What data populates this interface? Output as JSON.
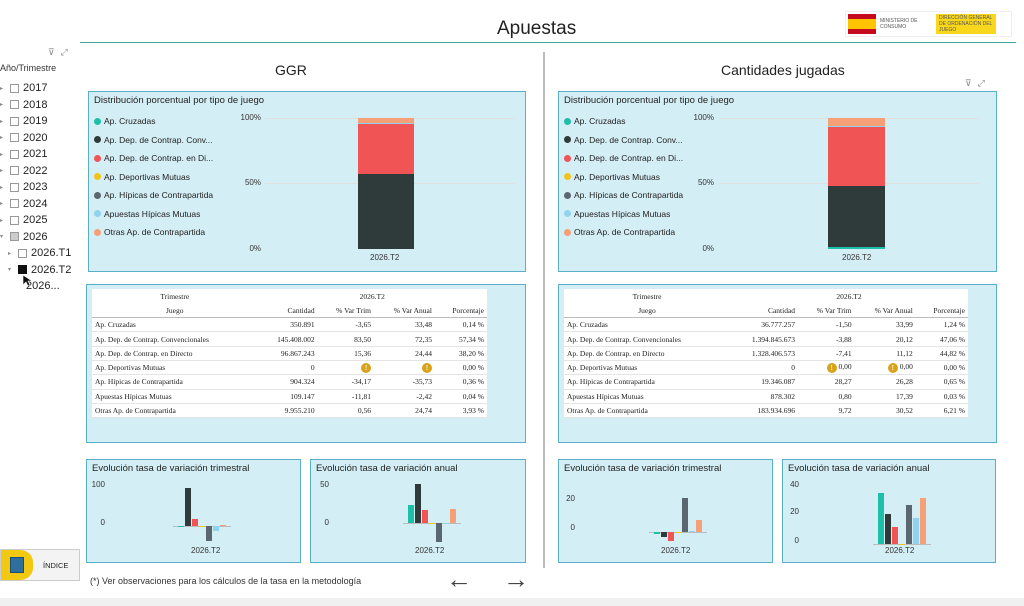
{
  "page": {
    "title": "Apuestas",
    "logo_text": "MINISTERIO DE CONSUMO",
    "logo_sub": "DIRECCIÓN GENERAL DE ORDENACIÓN DEL JUEGO"
  },
  "slicer": {
    "title": "Año/Trimestre",
    "years": [
      "2017",
      "2018",
      "2019",
      "2020",
      "2021",
      "2022",
      "2023",
      "2024",
      "2025",
      "2026"
    ],
    "quarters": [
      "2026.T1",
      "2026.T2"
    ],
    "sub": "2026..."
  },
  "colors": {
    "Ap. Cruzadas": "#1ebfa8",
    "Ap. Dep. de Contrap. Convencionales": "#2f3b3b",
    "Ap. Dep. de Contrap. en Directo": "#f05454",
    "Ap. Deportivas Mutuas": "#f0c419",
    "Ap. Hípicas de Contrapartida": "#5b6770",
    "Apuestas Hípicas Mutuas": "#8fd3f0",
    "Otras Ap. de Contrapartida": "#f5a076"
  },
  "ggr": {
    "section_title": "GGR",
    "dist": {
      "title": "Distribución porcentual por tipo de juego",
      "legend": [
        "Ap. Cruzadas",
        "Ap. Dep. de Contrap. Conv...",
        "Ap. Dep. de Contrap. en Di...",
        "Ap. Deportivas Mutuas",
        "Ap. Hípicas de Contrapartida",
        "Apuestas Hípicas Mutuas",
        "Otras Ap. de Contrapartida"
      ],
      "yticks": [
        "100%",
        "50%",
        "0%"
      ],
      "xlabel": "2026.T2"
    },
    "table": {
      "col_trimestre": "Trimestre",
      "col_juego": "Juego",
      "period": "2026.T2",
      "cols": [
        "Cantidad",
        "% Var Trim",
        "% Var Anual",
        "Porcentaje"
      ],
      "rows": [
        {
          "juego": "Ap. Cruzadas",
          "cantidad": "350.891",
          "trim": "-3,65",
          "anual": "33,48",
          "pct": "0,14 %"
        },
        {
          "juego": "Ap. Dep. de Contrap. Convencionales",
          "cantidad": "145.408.002",
          "trim": "83,50",
          "anual": "72,35",
          "pct": "57,34 %"
        },
        {
          "juego": "Ap. Dep. de Contrap. en Directo",
          "cantidad": "96.867.243",
          "trim": "15,36",
          "anual": "24,44",
          "pct": "38,20 %"
        },
        {
          "juego": "Ap. Deportivas Mutuas",
          "cantidad": "0",
          "trim": "",
          "anual": "",
          "pct": "0,00 %"
        },
        {
          "juego": "Ap. Hípicas de Contrapartida",
          "cantidad": "904.324",
          "trim": "-34,17",
          "anual": "-35,73",
          "pct": "0,36 %"
        },
        {
          "juego": "Apuestas Hípicas Mutuas",
          "cantidad": "109.147",
          "trim": "-11,81",
          "anual": "-2,42",
          "pct": "0,04 %"
        },
        {
          "juego": "Otras Ap. de Contrapartida",
          "cantidad": "9.955.210",
          "trim": "0,56",
          "anual": "24,74",
          "pct": "3,93 %"
        }
      ]
    },
    "trim_chart": {
      "title": "Evolución tasa de variación trimestral",
      "yticks": [
        "100",
        "0"
      ],
      "xlabel": "2026.T2"
    },
    "anual_chart": {
      "title": "Evolución tasa de variación anual",
      "yticks": [
        "50",
        "0"
      ],
      "xlabel": "2026.T2"
    }
  },
  "cant": {
    "section_title": "Cantidades jugadas",
    "dist": {
      "title": "Distribución porcentual por tipo de juego",
      "legend": [
        "Ap. Cruzadas",
        "Ap. Dep. de Contrap. Conv...",
        "Ap. Dep. de Contrap. en Di...",
        "Ap. Deportivas Mutuas",
        "Ap. Hípicas de Contrapartida",
        "Apuestas Hípicas Mutuas",
        "Otras Ap. de Contrapartida"
      ],
      "yticks": [
        "100%",
        "50%",
        "0%"
      ],
      "xlabel": "2026.T2"
    },
    "table": {
      "col_trimestre": "Trimestre",
      "col_juego": "Juego",
      "period": "2026.T2",
      "cols": [
        "Cantidad",
        "% Var Trim",
        "% Var Anual",
        "Porcentaje"
      ],
      "rows": [
        {
          "juego": "Ap. Cruzadas",
          "cantidad": "36.777.257",
          "trim": "-1,50",
          "anual": "33,99",
          "pct": "1,24 %"
        },
        {
          "juego": "Ap. Dep. de Contrap. Convencionales",
          "cantidad": "1.394.845.673",
          "trim": "-3,88",
          "anual": "20,12",
          "pct": "47,06 %"
        },
        {
          "juego": "Ap. Dep. de Contrap. en Directo",
          "cantidad": "1.328.406.573",
          "trim": "-7,41",
          "anual": "11,12",
          "pct": "44,82 %"
        },
        {
          "juego": "Ap. Deportivas Mutuas",
          "cantidad": "0",
          "trim": "0,00",
          "anual": "0,00",
          "pct": "0,00 %"
        },
        {
          "juego": "Ap. Hípicas de Contrapartida",
          "cantidad": "19.346.087",
          "trim": "28,27",
          "anual": "26,28",
          "pct": "0,65 %"
        },
        {
          "juego": "Apuestas Hípicas Mutuas",
          "cantidad": "878.302",
          "trim": "0,80",
          "anual": "17,39",
          "pct": "0,03 %"
        },
        {
          "juego": "Otras Ap. de Contrapartida",
          "cantidad": "183.934.696",
          "trim": "9,72",
          "anual": "30,52",
          "pct": "6,21 %"
        }
      ]
    },
    "trim_chart": {
      "title": "Evolución tasa de variación trimestral",
      "yticks": [
        "20",
        "0"
      ],
      "xlabel": "2026.T2"
    },
    "anual_chart": {
      "title": "Evolución tasa de variación anual",
      "yticks": [
        "40",
        "20",
        "0"
      ],
      "xlabel": "2026.T2"
    }
  },
  "chart_data": [
    {
      "type": "bar",
      "title": "Distribución porcentual por tipo de juego",
      "categories": [
        "2026.T2"
      ],
      "ylim": [
        0,
        100
      ],
      "series": [
        {
          "name": "Ap. Cruzadas",
          "values": [
            0.14
          ]
        },
        {
          "name": "Ap. Dep. de Contrap. Convencionales",
          "values": [
            57.34
          ]
        },
        {
          "name": "Ap. Dep. de Contrap. en Directo",
          "values": [
            38.2
          ]
        },
        {
          "name": "Ap. Deportivas Mutuas",
          "values": [
            0.0
          ]
        },
        {
          "name": "Ap. Hípicas de Contrapartida",
          "values": [
            0.36
          ]
        },
        {
          "name": "Apuestas Hípicas Mutuas",
          "values": [
            0.04
          ]
        },
        {
          "name": "Otras Ap. de Contrapartida",
          "values": [
            3.93
          ]
        }
      ]
    },
    {
      "type": "bar",
      "title": "Evolución tasa de variación trimestral",
      "categories": [
        "2026.T2"
      ],
      "series": [
        {
          "name": "Ap. Cruzadas",
          "values": [
            -3.65
          ]
        },
        {
          "name": "Ap. Dep. de Contrap. Convencionales",
          "values": [
            83.5
          ]
        },
        {
          "name": "Ap. Dep. de Contrap. en Directo",
          "values": [
            15.36
          ]
        },
        {
          "name": "Ap. Deportivas Mutuas",
          "values": [
            0
          ]
        },
        {
          "name": "Ap. Hípicas de Contrapartida",
          "values": [
            -34.17
          ]
        },
        {
          "name": "Apuestas Hípicas Mutuas",
          "values": [
            -11.81
          ]
        },
        {
          "name": "Otras Ap. de Contrapartida",
          "values": [
            0.56
          ]
        }
      ]
    },
    {
      "type": "bar",
      "title": "Evolución tasa de variación anual",
      "categories": [
        "2026.T2"
      ],
      "series": [
        {
          "name": "Ap. Cruzadas",
          "values": [
            33.48
          ]
        },
        {
          "name": "Ap. Dep. de Contrap. Convencionales",
          "values": [
            72.35
          ]
        },
        {
          "name": "Ap. Dep. de Contrap. en Directo",
          "values": [
            24.44
          ]
        },
        {
          "name": "Ap. Deportivas Mutuas",
          "values": [
            0
          ]
        },
        {
          "name": "Ap. Hípicas de Contrapartida",
          "values": [
            -35.73
          ]
        },
        {
          "name": "Apuestas Hípicas Mutuas",
          "values": [
            -2.42
          ]
        },
        {
          "name": "Otras Ap. de Contrapartida",
          "values": [
            24.74
          ]
        }
      ]
    },
    {
      "type": "bar",
      "title": "Distribución porcentual por tipo de juego",
      "categories": [
        "2026.T2"
      ],
      "ylim": [
        0,
        100
      ],
      "series": [
        {
          "name": "Ap. Cruzadas",
          "values": [
            1.24
          ]
        },
        {
          "name": "Ap. Dep. de Contrap. Convencionales",
          "values": [
            47.06
          ]
        },
        {
          "name": "Ap. Dep. de Contrap. en Directo",
          "values": [
            44.82
          ]
        },
        {
          "name": "Ap. Deportivas Mutuas",
          "values": [
            0.0
          ]
        },
        {
          "name": "Ap. Hípicas de Contrapartida",
          "values": [
            0.65
          ]
        },
        {
          "name": "Apuestas Hípicas Mutuas",
          "values": [
            0.03
          ]
        },
        {
          "name": "Otras Ap. de Contrapartida",
          "values": [
            6.21
          ]
        }
      ]
    },
    {
      "type": "bar",
      "title": "Evolución tasa de variación trimestral",
      "categories": [
        "2026.T2"
      ],
      "series": [
        {
          "name": "Ap. Cruzadas",
          "values": [
            -1.5
          ]
        },
        {
          "name": "Ap. Dep. de Contrap. Convencionales",
          "values": [
            -3.88
          ]
        },
        {
          "name": "Ap. Dep. de Contrap. en Directo",
          "values": [
            -7.41
          ]
        },
        {
          "name": "Ap. Deportivas Mutuas",
          "values": [
            0
          ]
        },
        {
          "name": "Ap. Hípicas de Contrapartida",
          "values": [
            28.27
          ]
        },
        {
          "name": "Apuestas Hípicas Mutuas",
          "values": [
            0.8
          ]
        },
        {
          "name": "Otras Ap. de Contrapartida",
          "values": [
            9.72
          ]
        }
      ]
    },
    {
      "type": "bar",
      "title": "Evolución tasa de variación anual",
      "categories": [
        "2026.T2"
      ],
      "series": [
        {
          "name": "Ap. Cruzadas",
          "values": [
            33.99
          ]
        },
        {
          "name": "Ap. Dep. de Contrap. Convencionales",
          "values": [
            20.12
          ]
        },
        {
          "name": "Ap. Dep. de Contrap. en Directo",
          "values": [
            11.12
          ]
        },
        {
          "name": "Ap. Deportivas Mutuas",
          "values": [
            0
          ]
        },
        {
          "name": "Ap. Hípicas de Contrapartida",
          "values": [
            26.28
          ]
        },
        {
          "name": "Apuestas Hípicas Mutuas",
          "values": [
            17.39
          ]
        },
        {
          "name": "Otras Ap. de Contrapartida",
          "values": [
            30.52
          ]
        }
      ]
    }
  ],
  "footer": {
    "note": "(*) Ver observaciones para los cálculos de la tasa en la metodología",
    "indice": "ÍNDICE",
    "prev": "←",
    "next": "→"
  }
}
